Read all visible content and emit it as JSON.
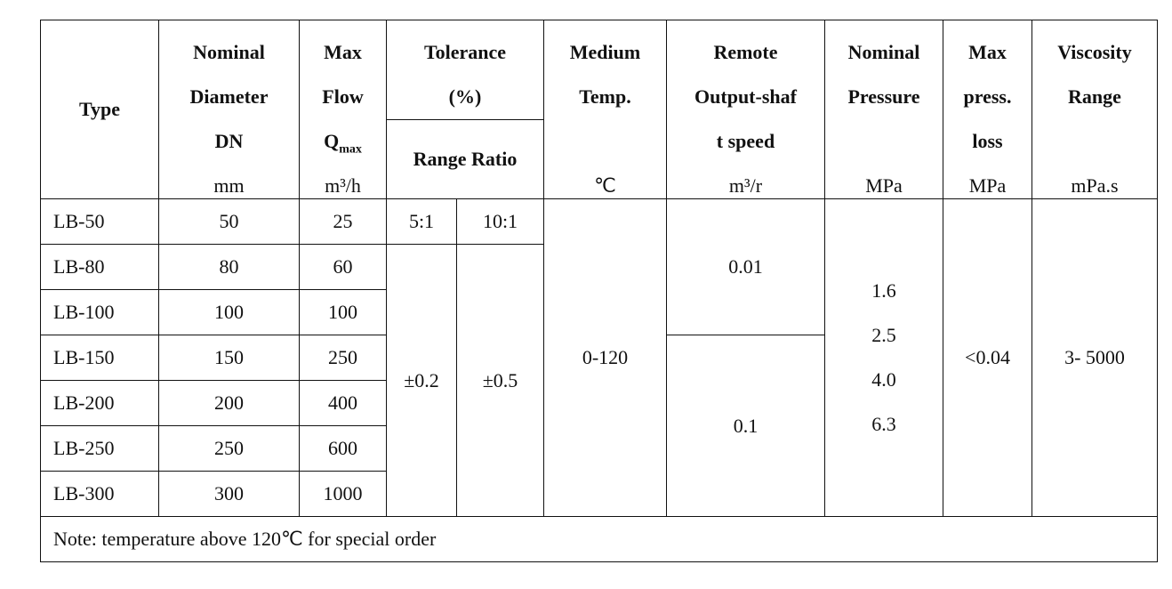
{
  "table": {
    "header": {
      "type": "Type",
      "nominal_diameter": {
        "lines": [
          "Nominal",
          "Diameter",
          "DN"
        ],
        "unit": "mm"
      },
      "max_flow": {
        "lines": [
          "Max",
          "Flow"
        ],
        "symbol": "Q",
        "subscript": "max",
        "unit": "m³/h"
      },
      "tolerance": {
        "lines": [
          "Tolerance",
          "(%)"
        ]
      },
      "range_ratio": "Range Ratio",
      "medium_temp": {
        "lines": [
          "Medium",
          "Temp."
        ],
        "unit": "℃"
      },
      "remote_speed": {
        "lines": [
          "Remote",
          "Output-shaf",
          "t speed"
        ],
        "unit": "m³/r"
      },
      "nominal_pressure": {
        "lines": [
          "Nominal",
          "Pressure"
        ],
        "unit": "MPa"
      },
      "max_press_loss": {
        "lines": [
          "Max",
          "press.",
          "loss"
        ],
        "unit": "MPa"
      },
      "viscosity": {
        "lines": [
          "Viscosity",
          "Range"
        ],
        "unit": "mPa.s"
      }
    },
    "ratios": [
      "5:1",
      "10:1"
    ],
    "rows": [
      [
        "LB-50",
        "50",
        "25"
      ],
      [
        "LB-80",
        "80",
        "60"
      ],
      [
        "LB-100",
        "100",
        "100"
      ],
      [
        "LB-150",
        "150",
        "250"
      ],
      [
        "LB-200",
        "200",
        "400"
      ],
      [
        "LB-250",
        "250",
        "600"
      ],
      [
        "LB-300",
        "300",
        "1000"
      ]
    ],
    "tolerance_values": [
      "±0.2",
      "±0.5"
    ],
    "medium_temp": "0-120",
    "remote_speed": [
      "0.01",
      "0.1"
    ],
    "nominal_pressure": [
      "1.6",
      "2.5",
      "4.0",
      "6.3"
    ],
    "max_press_loss": "<0.04",
    "viscosity": "3- 5000",
    "note": "Note: temperature above 120℃ for special order"
  }
}
